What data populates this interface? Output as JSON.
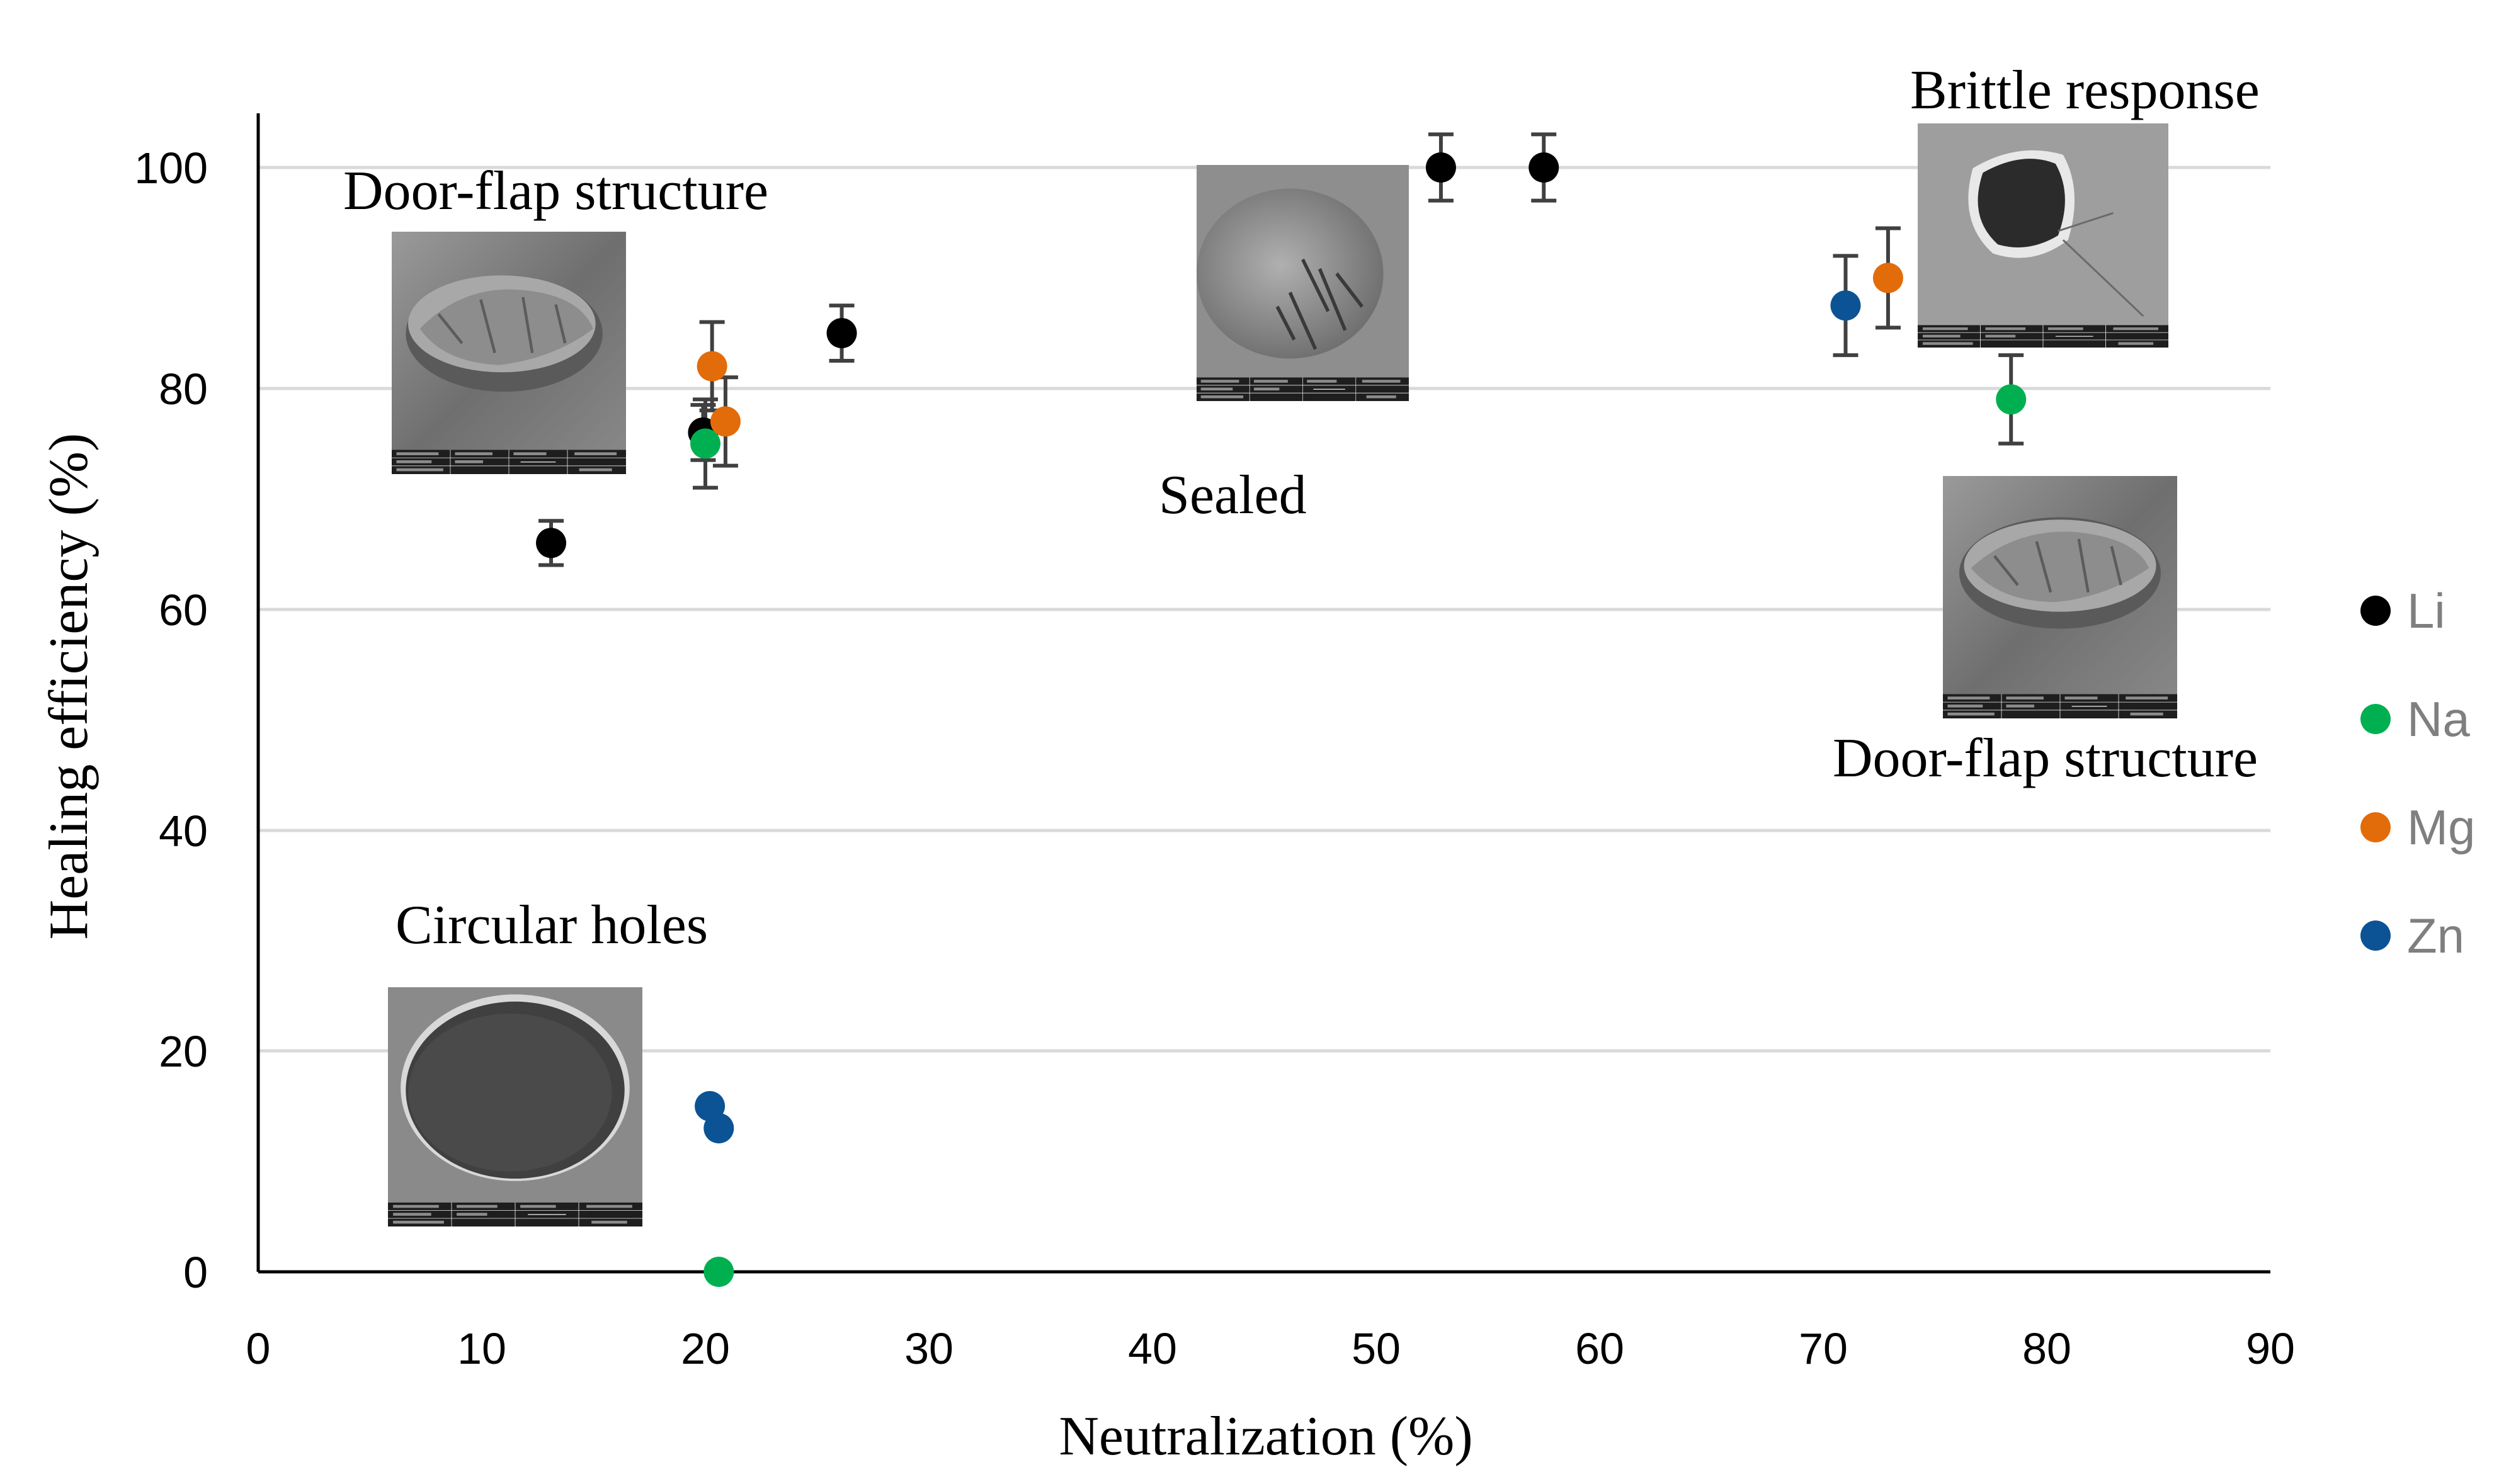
{
  "chart_data": {
    "type": "scatter",
    "title": "",
    "xlabel": "Neutralization (%)",
    "ylabel": "Healing efficiency (%)",
    "xlim": [
      0,
      90
    ],
    "ylim": [
      0,
      105
    ],
    "x_ticks": [
      0,
      10,
      20,
      30,
      40,
      50,
      60,
      70,
      80,
      90
    ],
    "y_ticks": [
      0,
      20,
      40,
      60,
      80,
      100
    ],
    "grid": "horizontal",
    "legend_position": "right",
    "series": [
      {
        "name": "Li",
        "color": "#000000",
        "points": [
          {
            "x": 13.1,
            "y": 66,
            "err": 2
          },
          {
            "x": 19.9,
            "y": 76,
            "err": 2.5
          },
          {
            "x": 26.1,
            "y": 85,
            "err": 2.5
          },
          {
            "x": 52.9,
            "y": 100,
            "err": 3
          },
          {
            "x": 57.5,
            "y": 100,
            "err": 3
          }
        ]
      },
      {
        "name": "Na",
        "color": "#00b050",
        "points": [
          {
            "x": 20.0,
            "y": 75,
            "err": 4
          },
          {
            "x": 20.6,
            "y": 0,
            "err": 0
          },
          {
            "x": 78.4,
            "y": 79,
            "err": 4
          }
        ]
      },
      {
        "name": "Mg",
        "color": "#e36c0a",
        "points": [
          {
            "x": 20.3,
            "y": 82,
            "err": 4
          },
          {
            "x": 20.9,
            "y": 77,
            "err": 4
          },
          {
            "x": 72.9,
            "y": 90,
            "err": 4.5
          }
        ]
      },
      {
        "name": "Zn",
        "color": "#0b5394",
        "points": [
          {
            "x": 20.2,
            "y": 15,
            "err": 0
          },
          {
            "x": 20.6,
            "y": 13,
            "err": 0
          },
          {
            "x": 71.0,
            "y": 87.5,
            "err": 4.5
          }
        ]
      }
    ],
    "annotations": [
      {
        "text": "Door-flap structure",
        "image": "sem-door-flap"
      },
      {
        "text": "Circular holes",
        "image": "sem-circular-hole"
      },
      {
        "text": "Sealed",
        "image": "sem-sealed"
      },
      {
        "text": "Brittle response",
        "image": "sem-brittle"
      },
      {
        "text": "Door-flap structure",
        "image": "sem-door-flap"
      }
    ]
  }
}
